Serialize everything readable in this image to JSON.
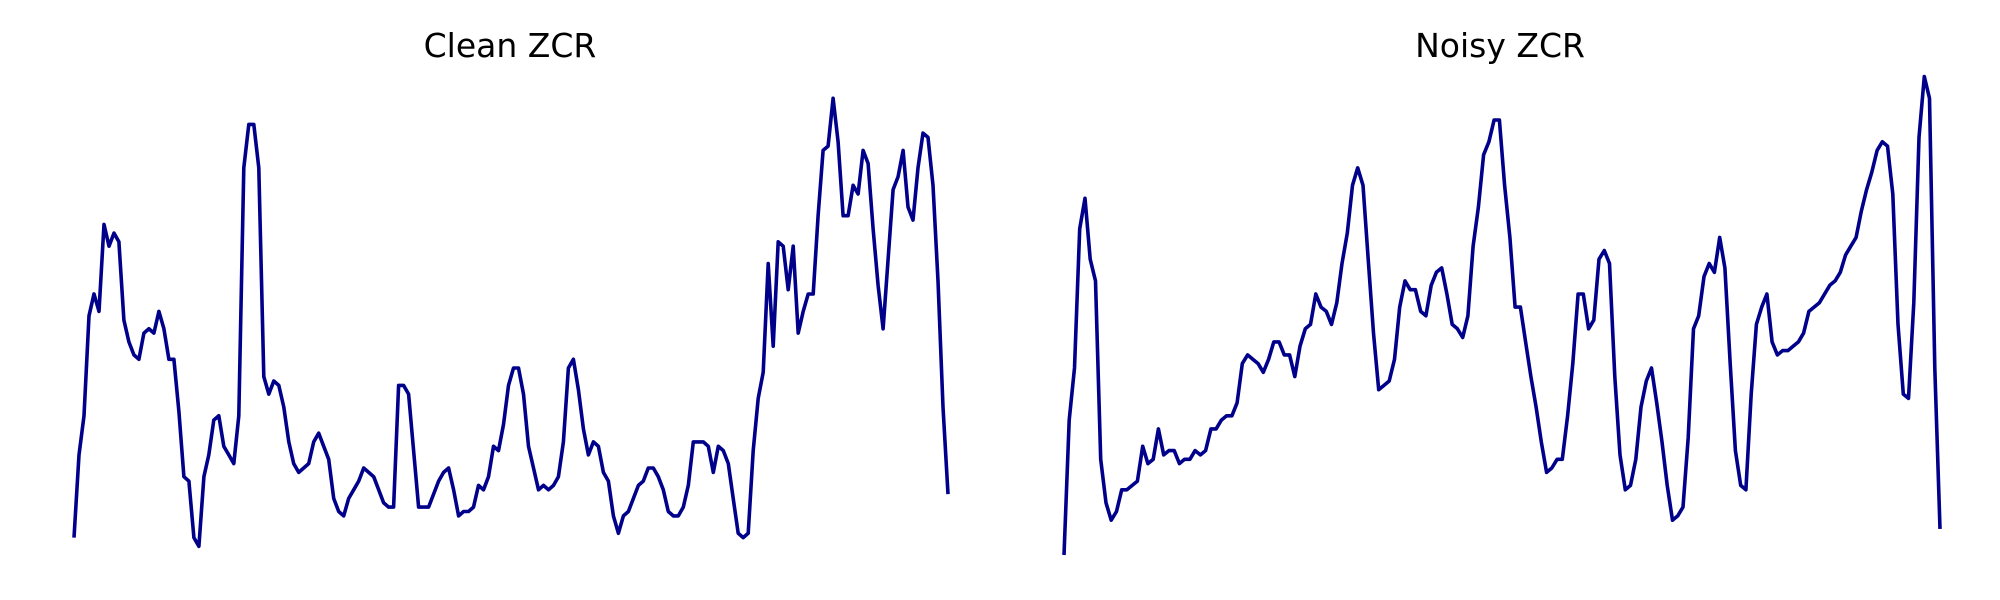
{
  "colors": {
    "line": "#00008b",
    "background": "#ffffff"
  },
  "chart_data": [
    {
      "type": "line",
      "title": "Clean ZCR",
      "xlabel": "",
      "ylabel": "",
      "axes_visible": false,
      "grid": false,
      "ylim": [
        0,
        1
      ],
      "values": [
        0.04,
        0.23,
        0.32,
        0.55,
        0.6,
        0.56,
        0.76,
        0.71,
        0.74,
        0.72,
        0.54,
        0.49,
        0.46,
        0.45,
        0.51,
        0.52,
        0.51,
        0.56,
        0.52,
        0.45,
        0.45,
        0.33,
        0.18,
        0.17,
        0.04,
        0.02,
        0.18,
        0.23,
        0.31,
        0.32,
        0.25,
        0.23,
        0.21,
        0.32,
        0.89,
        0.99,
        0.99,
        0.89,
        0.41,
        0.37,
        0.4,
        0.39,
        0.34,
        0.26,
        0.21,
        0.19,
        0.2,
        0.21,
        0.26,
        0.28,
        0.25,
        0.22,
        0.13,
        0.1,
        0.09,
        0.13,
        0.15,
        0.17,
        0.2,
        0.19,
        0.18,
        0.15,
        0.12,
        0.11,
        0.11,
        0.39,
        0.39,
        0.37,
        0.24,
        0.11,
        0.11,
        0.11,
        0.14,
        0.17,
        0.19,
        0.2,
        0.15,
        0.09,
        0.1,
        0.1,
        0.11,
        0.16,
        0.15,
        0.18,
        0.25,
        0.24,
        0.3,
        0.39,
        0.43,
        0.43,
        0.37,
        0.25,
        0.2,
        0.15,
        0.16,
        0.15,
        0.16,
        0.18,
        0.26,
        0.43,
        0.45,
        0.38,
        0.29,
        0.23,
        0.26,
        0.25,
        0.19,
        0.17,
        0.09,
        0.05,
        0.09,
        0.1,
        0.13,
        0.16,
        0.17,
        0.2,
        0.2,
        0.18,
        0.15,
        0.1,
        0.09,
        0.09,
        0.11,
        0.16,
        0.26,
        0.26,
        0.26,
        0.25,
        0.19,
        0.25,
        0.24,
        0.21,
        0.13,
        0.05,
        0.04,
        0.05,
        0.24,
        0.36,
        0.42,
        0.67,
        0.48,
        0.72,
        0.71,
        0.61,
        0.71,
        0.51,
        0.56,
        0.6,
        0.6,
        0.78,
        0.93,
        0.94,
        1.05,
        0.95,
        0.78,
        0.78,
        0.85,
        0.83,
        0.93,
        0.9,
        0.75,
        0.62,
        0.52,
        0.68,
        0.84,
        0.87,
        0.93,
        0.8,
        0.77,
        0.89,
        0.97,
        0.96,
        0.85,
        0.63,
        0.34,
        0.14
      ]
    },
    {
      "type": "line",
      "title": "Noisy ZCR",
      "xlabel": "",
      "ylabel": "",
      "axes_visible": false,
      "grid": false,
      "ylim": [
        0,
        1
      ],
      "values": [
        0.0,
        0.31,
        0.43,
        0.75,
        0.82,
        0.68,
        0.63,
        0.22,
        0.12,
        0.08,
        0.1,
        0.15,
        0.15,
        0.16,
        0.17,
        0.25,
        0.21,
        0.22,
        0.29,
        0.23,
        0.24,
        0.24,
        0.21,
        0.22,
        0.22,
        0.24,
        0.23,
        0.24,
        0.29,
        0.29,
        0.31,
        0.32,
        0.32,
        0.35,
        0.44,
        0.46,
        0.45,
        0.44,
        0.42,
        0.45,
        0.49,
        0.49,
        0.46,
        0.46,
        0.41,
        0.48,
        0.52,
        0.53,
        0.6,
        0.57,
        0.56,
        0.53,
        0.58,
        0.67,
        0.74,
        0.85,
        0.89,
        0.85,
        0.68,
        0.51,
        0.38,
        0.39,
        0.4,
        0.45,
        0.57,
        0.63,
        0.61,
        0.61,
        0.56,
        0.55,
        0.62,
        0.65,
        0.66,
        0.6,
        0.53,
        0.52,
        0.5,
        0.55,
        0.71,
        0.8,
        0.92,
        0.95,
        1.0,
        1.0,
        0.85,
        0.73,
        0.57,
        0.57,
        0.49,
        0.41,
        0.34,
        0.26,
        0.19,
        0.2,
        0.22,
        0.22,
        0.32,
        0.44,
        0.6,
        0.6,
        0.52,
        0.54,
        0.68,
        0.7,
        0.67,
        0.41,
        0.23,
        0.15,
        0.16,
        0.22,
        0.34,
        0.4,
        0.43,
        0.35,
        0.26,
        0.16,
        0.08,
        0.09,
        0.11,
        0.27,
        0.52,
        0.55,
        0.64,
        0.67,
        0.65,
        0.73,
        0.66,
        0.44,
        0.24,
        0.16,
        0.15,
        0.37,
        0.53,
        0.57,
        0.6,
        0.49,
        0.46,
        0.47,
        0.47,
        0.48,
        0.49,
        0.51,
        0.56,
        0.57,
        0.58,
        0.6,
        0.62,
        0.63,
        0.65,
        0.69,
        0.71,
        0.73,
        0.79,
        0.84,
        0.88,
        0.93,
        0.95,
        0.94,
        0.83,
        0.53,
        0.37,
        0.36,
        0.58,
        0.96,
        1.1,
        1.05,
        0.43,
        0.06
      ]
    }
  ]
}
